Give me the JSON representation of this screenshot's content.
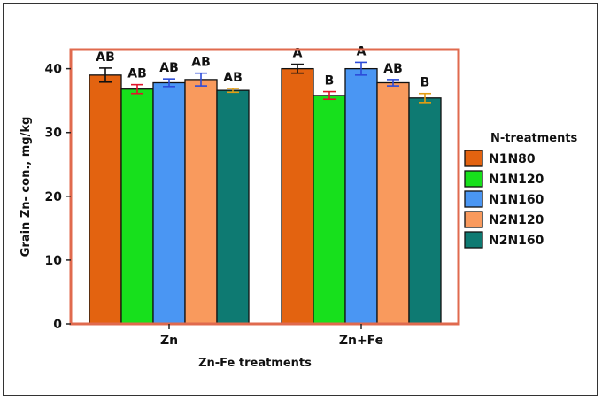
{
  "chart_data": {
    "type": "bar",
    "categories": [
      "Zn",
      "Zn+Fe"
    ],
    "xlabel": "Zn-Fe treatments",
    "ylabel": "Grain Zn- con., mg/kg",
    "ylim": [
      0,
      43
    ],
    "yticks": [
      0,
      10,
      20,
      30,
      40
    ],
    "grid": false,
    "legend": {
      "title": "N-treatments",
      "position": "right"
    },
    "series": [
      {
        "name": "N1N80",
        "color": "#e36310",
        "errColor": "#111111",
        "values": [
          39.0,
          40.0
        ],
        "errors": [
          1.1,
          0.7
        ],
        "letters": [
          "AB",
          "A"
        ]
      },
      {
        "name": "N1N120",
        "color": "#17e01c",
        "errColor": "#e0142a",
        "values": [
          36.8,
          35.8
        ],
        "errors": [
          0.7,
          0.6
        ],
        "letters": [
          "AB",
          "B"
        ]
      },
      {
        "name": "N1N160",
        "color": "#4a96f3",
        "errColor": "#2c4bd9",
        "values": [
          37.8,
          40.0
        ],
        "errors": [
          0.6,
          1.0
        ],
        "letters": [
          "AB",
          "A"
        ]
      },
      {
        "name": "N2N120",
        "color": "#f99a5d",
        "errColor": "#2c4bd9",
        "values": [
          38.3,
          37.8
        ],
        "errors": [
          1.0,
          0.5
        ],
        "letters": [
          "AB",
          "AB"
        ]
      },
      {
        "name": "N2N160",
        "color": "#0e7a72",
        "errColor": "#e29d12",
        "values": [
          36.6,
          35.4
        ],
        "errors": [
          0.3,
          0.7
        ],
        "letters": [
          "AB",
          "B"
        ]
      }
    ]
  },
  "colors": {
    "panel_border": "#e06a4e"
  }
}
